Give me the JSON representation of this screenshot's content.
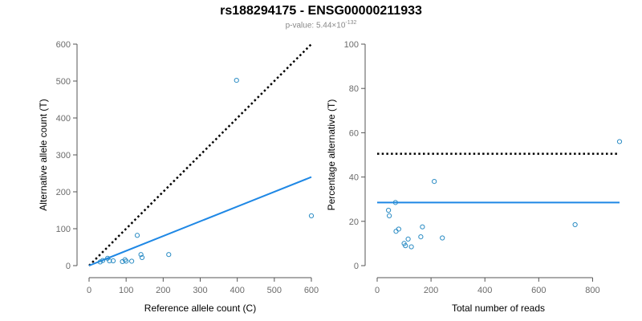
{
  "title": "rs188294175 - ENSG00000211933",
  "subtitle": {
    "prefix": "p-value: 5.44×10",
    "exponent": "-132"
  },
  "colors": {
    "points": "#2b8cc4",
    "fit_line": "#1f88e5",
    "reference_line": "#000000",
    "axis": "#555555"
  },
  "chart_data": [
    {
      "type": "scatter",
      "xlabel": "Reference allele count (C)",
      "ylabel": "Alternative allele count (T)",
      "xlim": [
        0,
        600
      ],
      "ylim": [
        0,
        600
      ],
      "xticks": [
        0,
        100,
        200,
        300,
        400,
        500,
        600
      ],
      "yticks": [
        0,
        100,
        200,
        300,
        400,
        500,
        600
      ],
      "points": [
        [
          30,
          10
        ],
        [
          37,
          14
        ],
        [
          50,
          20
        ],
        [
          55,
          13
        ],
        [
          65,
          13
        ],
        [
          90,
          11
        ],
        [
          97,
          16
        ],
        [
          100,
          12
        ],
        [
          115,
          12
        ],
        [
          130,
          82
        ],
        [
          140,
          30
        ],
        [
          143,
          22
        ],
        [
          215,
          30
        ],
        [
          398,
          502
        ],
        [
          600,
          135
        ]
      ],
      "lines": [
        {
          "style": "dotted",
          "color": "reference_line",
          "from": [
            0,
            0
          ],
          "to": [
            600,
            600
          ]
        },
        {
          "style": "solid",
          "color": "fit_line",
          "from": [
            0,
            0
          ],
          "to": [
            600,
            240
          ]
        }
      ]
    },
    {
      "type": "scatter",
      "xlabel": "Total number of reads",
      "ylabel": "Percentage alternative (T)",
      "xlim": [
        0,
        900
      ],
      "ylim": [
        0,
        100
      ],
      "xticks": [
        0,
        200,
        400,
        600,
        800
      ],
      "yticks": [
        0,
        20,
        40,
        60,
        80,
        100
      ],
      "points": [
        [
          42,
          25
        ],
        [
          45,
          22.5
        ],
        [
          68,
          28.5
        ],
        [
          70,
          15.5
        ],
        [
          80,
          16.5
        ],
        [
          100,
          10
        ],
        [
          105,
          9
        ],
        [
          115,
          12
        ],
        [
          127,
          8.5
        ],
        [
          162,
          13
        ],
        [
          168,
          17.5
        ],
        [
          212,
          38
        ],
        [
          242,
          12.5
        ],
        [
          735,
          18.5
        ],
        [
          900,
          56
        ]
      ],
      "lines": [
        {
          "style": "dotted",
          "color": "reference_line",
          "from": [
            0,
            50.5
          ],
          "to": [
            900,
            50.5
          ]
        },
        {
          "style": "solid",
          "color": "fit_line",
          "from": [
            0,
            28.5
          ],
          "to": [
            900,
            28.5
          ]
        }
      ]
    }
  ]
}
